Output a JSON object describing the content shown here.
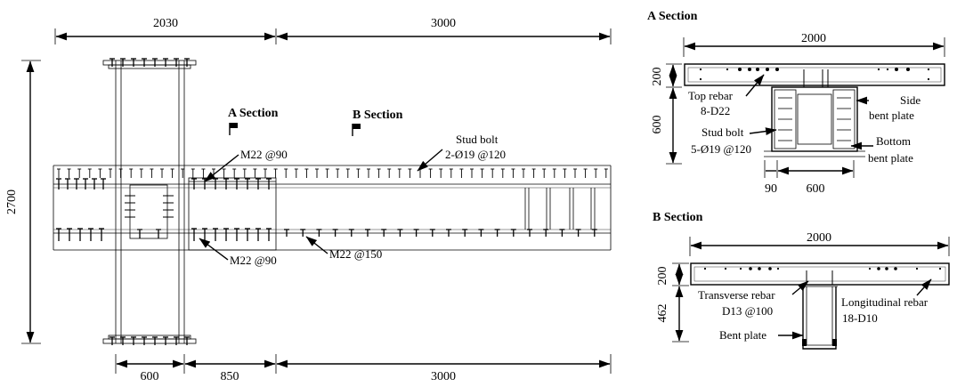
{
  "plan": {
    "dim_top_left": "2030",
    "dim_top_right": "3000",
    "dim_height": "2700",
    "dim_bottom_1": "600",
    "dim_bottom_2": "850",
    "dim_bottom_3": "3000",
    "a_section_marker": "A Section",
    "b_section_marker": "B Section",
    "stud_bolt_line1": "Stud bolt",
    "stud_bolt_line2": "2-Ø19 @120",
    "bolt_top": "M22 @90",
    "bolt_bottom": "M22 @90",
    "bolt_web": "M22 @150"
  },
  "section_a": {
    "title": "A Section",
    "dim_width": "2000",
    "dim_slab": "200",
    "dim_depth": "600",
    "dim_edge": "90",
    "dim_beam_width": "600",
    "top_rebar_line1": "Top rebar",
    "top_rebar_line2": "8-D22",
    "stud_line1": "Stud bolt",
    "stud_line2": "5-Ø19 @120",
    "side_plate_line1": "Side",
    "side_plate_line2": "bent plate",
    "bottom_plate_line1": "Bottom",
    "bottom_plate_line2": "bent plate"
  },
  "section_b": {
    "title": "B Section",
    "dim_width": "2000",
    "dim_slab": "200",
    "dim_depth": "462",
    "transverse_line1": "Transverse rebar",
    "transverse_line2": "D13 @100",
    "longitudinal_line1": "Longitudinal rebar",
    "longitudinal_line2": "18-D10",
    "bent_plate": "Bent plate"
  }
}
